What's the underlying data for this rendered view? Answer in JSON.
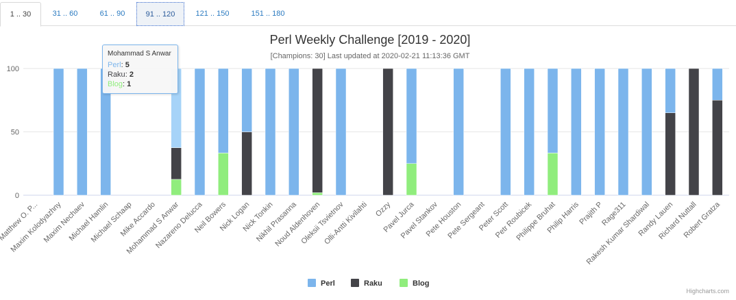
{
  "tabs": [
    {
      "label": "1 .. 30",
      "state": "active"
    },
    {
      "label": "31 .. 60",
      "state": "normal"
    },
    {
      "label": "61 .. 90",
      "state": "normal"
    },
    {
      "label": "91 .. 120",
      "state": "focused"
    },
    {
      "label": "121 .. 150",
      "state": "normal"
    },
    {
      "label": "151 .. 180",
      "state": "normal"
    }
  ],
  "credits": "Highcharts.com",
  "colors": {
    "Perl": "#7cb5ec",
    "Raku": "#434348",
    "Blog": "#90ed7d",
    "grid": "#e6e6e6",
    "text": "#666666",
    "title": "#333333"
  },
  "tooltip": {
    "name": "Mohammad S Anwar",
    "rows": [
      {
        "series": "Perl",
        "value": "5"
      },
      {
        "series": "Raku",
        "value": "2"
      },
      {
        "series": "Blog",
        "value": "1"
      }
    ]
  },
  "chart_data": {
    "type": "bar",
    "stacking": "percent",
    "title": "Perl Weekly Challenge [2019 - 2020]",
    "subtitle": "[Champions: 30] Last updated at 2020-02-21 11:13:36 GMT",
    "ylim": [
      0,
      100
    ],
    "yticks": [
      0,
      50,
      100
    ],
    "grid": true,
    "legend": "bottom-center",
    "categories": [
      "Matthew O. P...",
      "Maxim Kolodyazhny",
      "Maxim Nechaev",
      "Michael Hamlin",
      "Michael Schaap",
      "Mike Accardo",
      "Mohammad S Anwar",
      "Nazareno Delucca",
      "Neil Bowers",
      "Nick Logan",
      "Nick Tonkin",
      "Nikhil Prasanna",
      "Noud Aldenhoven",
      "Oleksii Tsvietnov",
      "Olli-Antti Kivilahti",
      "Ozzy",
      "Pavel Jurca",
      "Pavel Stankov",
      "Pete Houston",
      "Pete Sergeant",
      "Peter Scott",
      "Petr Roubicek",
      "Philippe Bruhat",
      "Philip Harris",
      "Prajith P",
      "Rage311",
      "Rakesh Kumar Shardiwal",
      "Randy Lauen",
      "Richard Nuttall",
      "Robert Gratza"
    ],
    "series": [
      {
        "name": "Perl",
        "values": [
          0,
          100,
          100,
          100,
          0,
          0,
          62.5,
          100,
          66.7,
          50,
          100,
          100,
          0,
          100,
          0,
          0,
          75,
          0,
          100,
          0,
          100,
          100,
          66.7,
          100,
          100,
          100,
          100,
          35,
          0,
          25
        ]
      },
      {
        "name": "Raku",
        "values": [
          0,
          0,
          0,
          0,
          0,
          0,
          25,
          0,
          0,
          50,
          0,
          0,
          98,
          0,
          0,
          100,
          0,
          0,
          0,
          0,
          0,
          0,
          0,
          0,
          0,
          0,
          0,
          65,
          100,
          75
        ]
      },
      {
        "name": "Blog",
        "values": [
          0,
          0,
          0,
          0,
          0,
          0,
          12.5,
          0,
          33.3,
          0,
          0,
          0,
          2,
          0,
          0,
          0,
          25,
          0,
          0,
          0,
          0,
          0,
          33.3,
          0,
          0,
          0,
          0,
          0,
          0,
          0
        ]
      }
    ]
  }
}
